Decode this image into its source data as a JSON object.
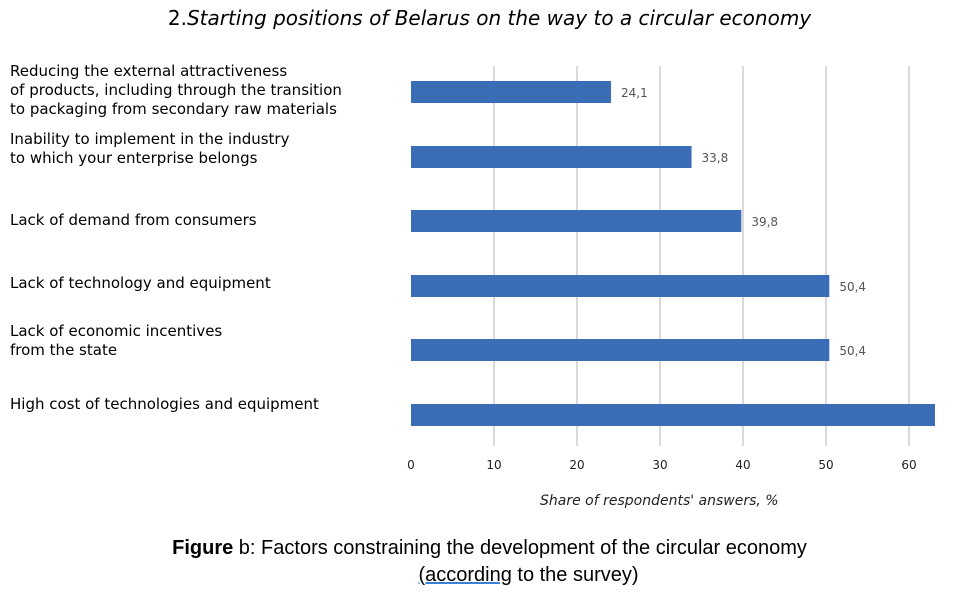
{
  "chart_data": {
    "type": "bar",
    "orientation": "horizontal",
    "title_number": "2.",
    "title": "Starting positions of Belarus on the way to a circular economy",
    "categories": [
      "Reducing the external attractiveness\nof products, including through the transition\nto packaging from secondary raw materials",
      "Inability to implement in the industry\nto which your enterprise belongs",
      "Lack of demand from consumers",
      "Lack of technology and equipment",
      "Lack of economic incentives\nfrom the state",
      "High cost of technologies and equipment"
    ],
    "values": [
      24.1,
      33.8,
      39.8,
      50.4,
      50.4,
      63.2
    ],
    "value_labels": [
      "24,1",
      "33,8",
      "39,8",
      "50,4",
      "50,4",
      ""
    ],
    "xlim": [
      0,
      63.2
    ],
    "xticks": [
      "0",
      "10",
      "20",
      "30",
      "40",
      "50",
      "60"
    ],
    "xlabel": "Share of respondents' answers, %",
    "grid": true,
    "bar_color": "#3a6db5"
  },
  "caption": {
    "bold": "Figure",
    "text_part1": " b: Factors constraining the development of the circular economy",
    "underlined": "(according",
    "text_part2": " to the survey)"
  }
}
